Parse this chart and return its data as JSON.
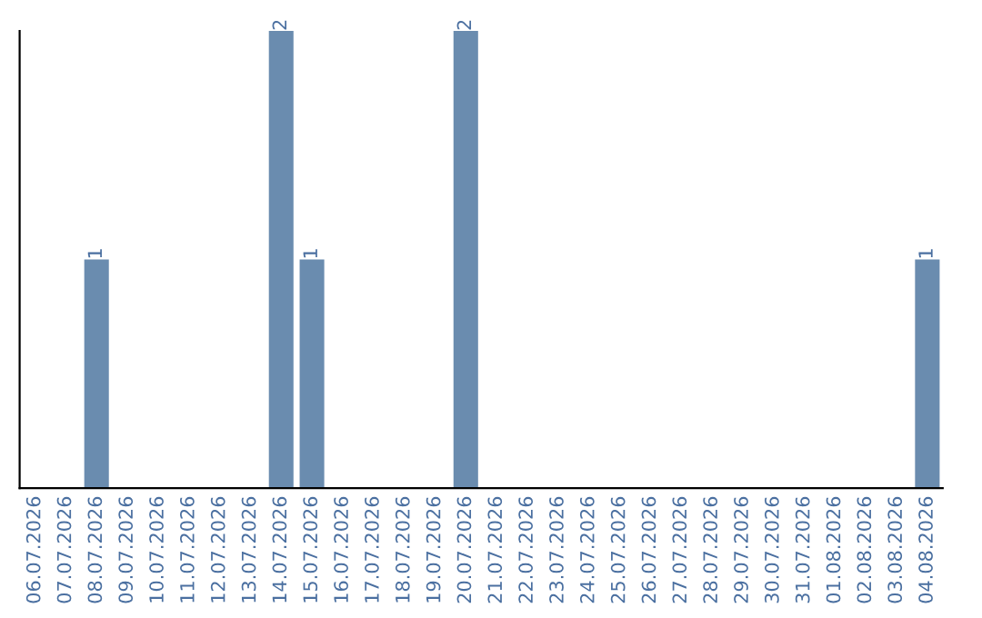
{
  "chart_data": {
    "type": "bar",
    "categories": [
      "06.07.2026",
      "07.07.2026",
      "08.07.2026",
      "09.07.2026",
      "10.07.2026",
      "11.07.2026",
      "12.07.2026",
      "13.07.2026",
      "14.07.2026",
      "15.07.2026",
      "16.07.2026",
      "17.07.2026",
      "18.07.2026",
      "19.07.2026",
      "20.07.2026",
      "21.07.2026",
      "22.07.2026",
      "23.07.2026",
      "24.07.2026",
      "25.07.2026",
      "26.07.2026",
      "27.07.2026",
      "28.07.2026",
      "29.07.2026",
      "30.07.2026",
      "31.07.2026",
      "01.08.2026",
      "02.08.2026",
      "03.08.2026",
      "04.08.2026"
    ],
    "values": [
      0,
      0,
      1,
      0,
      0,
      0,
      0,
      0,
      2,
      1,
      0,
      0,
      0,
      0,
      2,
      0,
      0,
      0,
      0,
      0,
      0,
      0,
      0,
      0,
      0,
      0,
      0,
      0,
      0,
      1
    ],
    "value_labels": [
      null,
      null,
      "1",
      null,
      null,
      null,
      null,
      null,
      "2",
      "1",
      null,
      null,
      null,
      null,
      "2",
      null,
      null,
      null,
      null,
      null,
      null,
      null,
      null,
      null,
      null,
      null,
      null,
      null,
      null,
      "1"
    ],
    "color": "#6a8caf",
    "tick_labels": "x",
    "grid": false,
    "legend": false
  }
}
